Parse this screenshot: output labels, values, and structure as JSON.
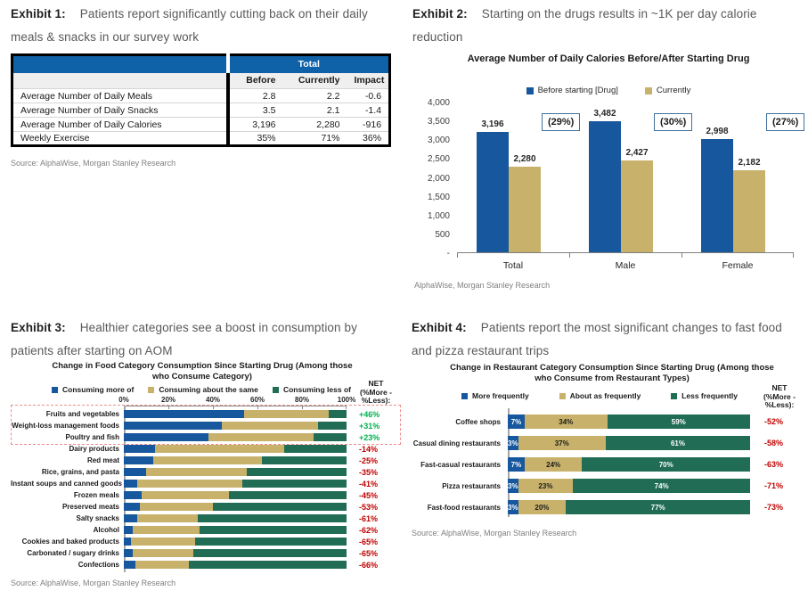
{
  "colors": {
    "blue": "#16579d",
    "tan": "#c8b26b",
    "green": "#206c55",
    "table_header_blue": "#0f62a8",
    "net_positive": "#00b050",
    "net_negative": "#c00000",
    "title_grey": "#595959",
    "source_grey": "#808080",
    "pct_box_border": "#41719c",
    "highlight_dashed_red": "#ef8d8d"
  },
  "exhibit1": {
    "label": "Exhibit 1:",
    "title": "Patients report significantly cutting back on their daily meals & snacks in our survey work",
    "source": "Source: AlphaWise, Morgan Stanley Research"
  },
  "exhibit2": {
    "label": "Exhibit 2:",
    "title": "Starting on the drugs results in ~1K per day calorie reduction",
    "source": "AlphaWise, Morgan Stanley Research"
  },
  "exhibit3": {
    "label": "Exhibit 3:",
    "title": "Healthier categories see a boost in consumption by patients after starting on AOM",
    "source": "Source: AlphaWise, Morgan Stanley Research"
  },
  "exhibit4": {
    "label": "Exhibit 4:",
    "title": "Patients report the most significant changes to fast food and pizza restaurant trips",
    "source": "Source: AlphaWise, Morgan Stanley Research"
  },
  "chart_data": [
    {
      "exhibit": 1,
      "type": "table",
      "group_header": "Total",
      "columns": [
        "Before",
        "Currently",
        "Impact"
      ],
      "rows": [
        {
          "label": "Average Number of Daily Meals",
          "values": [
            "2.8",
            "2.2",
            "-0.6"
          ]
        },
        {
          "label": "Average Number of Daily Snacks",
          "values": [
            "3.5",
            "2.1",
            "-1.4"
          ]
        },
        {
          "label": "Average Number of Daily Calories",
          "values": [
            "3,196",
            "2,280",
            "-916"
          ]
        },
        {
          "label": "Weekly Exercise",
          "values": [
            "35%",
            "71%",
            "36%"
          ]
        }
      ]
    },
    {
      "exhibit": 2,
      "type": "bar",
      "title": "Average Number of Daily Calories Before/After Starting Drug",
      "categories": [
        "Total",
        "Male",
        "Female"
      ],
      "series": [
        {
          "name": "Before starting [Drug]",
          "color": "blue",
          "values": [
            3196,
            3482,
            2998
          ],
          "value_labels": [
            "3,196",
            "3,482",
            "2,998"
          ]
        },
        {
          "name": "Currently",
          "color": "tan",
          "values": [
            2280,
            2427,
            2182
          ],
          "value_labels": [
            "2,280",
            "2,427",
            "2,182"
          ]
        }
      ],
      "reduction_labels": [
        "(29%)",
        "(30%)",
        "(27%)"
      ],
      "ylim": [
        0,
        4000
      ],
      "ytick_labels": [
        "4,000",
        "3,500",
        "3,000",
        "2,500",
        "2,000",
        "1,500",
        "1,000",
        "500",
        "-"
      ],
      "legend_position": "top",
      "grid": false
    },
    {
      "exhibit": 3,
      "type": "stacked_bar_horizontal",
      "title": "Change in Food Category Consumption Since Starting Drug (Among those who Consume Category)",
      "legend": [
        "Consuming more of",
        "Consuming about the same",
        "Consuming less of"
      ],
      "series_colors": [
        "blue",
        "tan",
        "green"
      ],
      "net_header": [
        "NET",
        "(%More -",
        "%Less):"
      ],
      "xtick_labels": [
        "0%",
        "20%",
        "40%",
        "60%",
        "80%",
        "100%"
      ],
      "xlim": [
        0,
        100
      ],
      "highlight_box": {
        "rows": [
          0,
          1,
          2
        ],
        "style": "red-dashed"
      },
      "rows": [
        {
          "label": "Fruits and vegetables",
          "more": 54,
          "same": 38,
          "less": 8,
          "net": "+46%"
        },
        {
          "label": "Weight-loss management foods",
          "more": 44,
          "same": 43,
          "less": 13,
          "net": "+31%"
        },
        {
          "label": "Poultry and fish",
          "more": 38,
          "same": 47,
          "less": 15,
          "net": "+23%"
        },
        {
          "label": "Dairy products",
          "more": 14,
          "same": 58,
          "less": 28,
          "net": "-14%"
        },
        {
          "label": "Red meat",
          "more": 13,
          "same": 49,
          "less": 38,
          "net": "-25%"
        },
        {
          "label": "Rice, grains, and pasta",
          "more": 10,
          "same": 45,
          "less": 45,
          "net": "-35%"
        },
        {
          "label": "Instant soups and canned goods",
          "more": 6,
          "same": 47,
          "less": 47,
          "net": "-41%"
        },
        {
          "label": "Frozen meals",
          "more": 8,
          "same": 39,
          "less": 53,
          "net": "-45%"
        },
        {
          "label": "Preserved meats",
          "more": 7,
          "same": 33,
          "less": 60,
          "net": "-53%"
        },
        {
          "label": "Salty snacks",
          "more": 6,
          "same": 27,
          "less": 67,
          "net": "-61%"
        },
        {
          "label": "Alcohol",
          "more": 4,
          "same": 30,
          "less": 66,
          "net": "-62%"
        },
        {
          "label": "Cookies and baked products",
          "more": 3,
          "same": 29,
          "less": 68,
          "net": "-65%"
        },
        {
          "label": "Carbonated / sugary drinks",
          "more": 4,
          "same": 27,
          "less": 69,
          "net": "-65%"
        },
        {
          "label": "Confections",
          "more": 5,
          "same": 24,
          "less": 71,
          "net": "-66%"
        }
      ]
    },
    {
      "exhibit": 4,
      "type": "stacked_bar_horizontal",
      "title": "Change in Restaurant Category Consumption Since Starting Drug (Among those who Consume from Restaurant Types)",
      "legend": [
        "More frequently",
        "About as frequently",
        "Less frequently"
      ],
      "series_colors": [
        "blue",
        "tan",
        "green"
      ],
      "net_header": [
        "NET",
        "(%More -",
        "%Less):"
      ],
      "rows": [
        {
          "label": "Coffee shops",
          "more": 7,
          "same": 34,
          "less": 59,
          "labels": [
            "7%",
            "34%",
            "59%"
          ],
          "net": "-52%"
        },
        {
          "label": "Casual dining restaurants",
          "more": 3,
          "same": 37,
          "less": 61,
          "labels": [
            "3%",
            "37%",
            "61%"
          ],
          "net": "-58%"
        },
        {
          "label": "Fast-casual restaurants",
          "more": 7,
          "same": 24,
          "less": 70,
          "labels": [
            "7%",
            "24%",
            "70%"
          ],
          "net": "-63%"
        },
        {
          "label": "Pizza restaurants",
          "more": 3,
          "same": 23,
          "less": 74,
          "labels": [
            "3%",
            "23%",
            "74%"
          ],
          "net": "-71%"
        },
        {
          "label": "Fast-food restaurants",
          "more": 3,
          "same": 20,
          "less": 77,
          "labels": [
            "3%",
            "20%",
            "77%"
          ],
          "net": "-73%"
        }
      ]
    }
  ]
}
